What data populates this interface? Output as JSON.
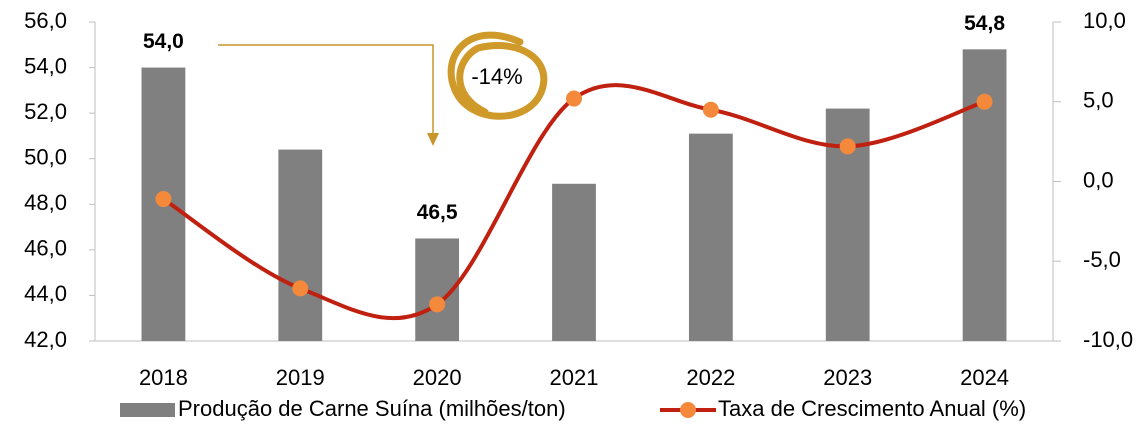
{
  "chart_data": {
    "type": "combo",
    "categories": [
      "2018",
      "2019",
      "2020",
      "2021",
      "2022",
      "2023",
      "2024"
    ],
    "series": [
      {
        "name": "Produção de Carne Suína (milhões/ton)",
        "type": "bar",
        "color": "#808080",
        "values": [
          54.0,
          50.4,
          46.5,
          48.9,
          51.1,
          52.2,
          54.8
        ],
        "value_labels": [
          "54,0",
          null,
          "46,5",
          null,
          null,
          null,
          "54,8"
        ]
      },
      {
        "name": "Taxa de Crescimento Anual (%)",
        "type": "line",
        "axis": "y2",
        "color": "#C0200F",
        "marker_color": "#F4893B",
        "values": [
          -1.1,
          -6.7,
          -7.7,
          5.2,
          4.5,
          2.2,
          5.0
        ]
      }
    ],
    "ylim": [
      42,
      56
    ],
    "yticks": [
      {
        "value": 42,
        "label": "42,0"
      },
      {
        "value": 44,
        "label": "44,0"
      },
      {
        "value": 46,
        "label": "46,0"
      },
      {
        "value": 48,
        "label": "48,0"
      },
      {
        "value": 50,
        "label": "50,0"
      },
      {
        "value": 52,
        "label": "52,0"
      },
      {
        "value": 54,
        "label": "54,0"
      },
      {
        "value": 56,
        "label": "56,0"
      }
    ],
    "y2lim": [
      -10,
      10
    ],
    "y2ticks": [
      {
        "value": -10,
        "label": "-10,0"
      },
      {
        "value": -5,
        "label": "-5,0"
      },
      {
        "value": 0,
        "label": "0,0"
      },
      {
        "value": 5,
        "label": "5,0"
      },
      {
        "value": 10,
        "label": "10,0"
      }
    ],
    "annotation": "-14%",
    "legend": "bottom"
  }
}
